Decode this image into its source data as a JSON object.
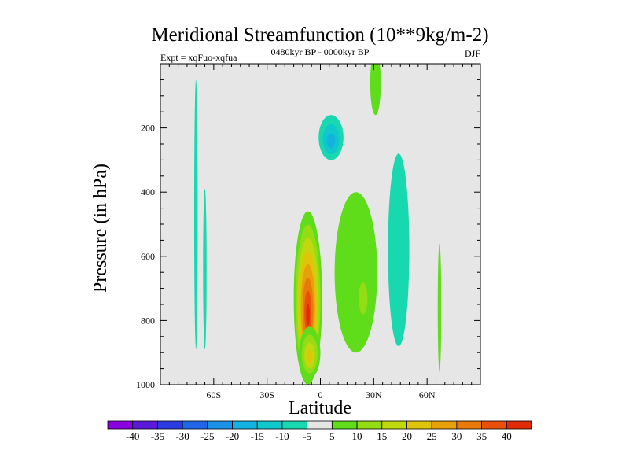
{
  "chart_data": {
    "type": "contour",
    "title": "Meridional Streamfunction (10**9kg/m-2)",
    "subtitle": "0480kyr BP - 0000kyr BP",
    "left_label": "Expt = xqFuo-xqfua",
    "right_label": "DJF",
    "xlabel": "Latitude",
    "ylabel": "Pressure (in hPa)",
    "xlim": [
      -90,
      90
    ],
    "ylim": [
      1000,
      0
    ],
    "x_ticks": [
      {
        "value": -60,
        "label": "60S"
      },
      {
        "value": -30,
        "label": "30S"
      },
      {
        "value": 0,
        "label": "0"
      },
      {
        "value": 30,
        "label": "30N"
      },
      {
        "value": 60,
        "label": "60N"
      }
    ],
    "y_ticks": [
      {
        "value": 200,
        "label": "200"
      },
      {
        "value": 400,
        "label": "400"
      },
      {
        "value": 600,
        "label": "600"
      },
      {
        "value": 800,
        "label": "800"
      },
      {
        "value": 1000,
        "label": "1000"
      }
    ],
    "levels": [
      -40,
      -35,
      -30,
      -25,
      -20,
      -15,
      -10,
      -5,
      5,
      10,
      15,
      20,
      25,
      30,
      35,
      40
    ],
    "level_labels": [
      "-40",
      "-35",
      "-30",
      "-25",
      "-20",
      "-15",
      "-10",
      "-5",
      "5",
      "10",
      "15",
      "20",
      "25",
      "30",
      "35",
      "40"
    ],
    "colors": [
      "#8a00e0",
      "#5b19d9",
      "#2b3be0",
      "#1f67e8",
      "#1a92e6",
      "#14b2e0",
      "#10c8cc",
      "#18d8b0",
      "#e6e6e6",
      "#5fdc1a",
      "#94dc14",
      "#c2d80e",
      "#e0c40a",
      "#e8a00a",
      "#e87a0a",
      "#e8500a",
      "#e02a08"
    ],
    "features": [
      {
        "name": "main-positive-cell",
        "center": [
          -7,
          730
        ],
        "rx": 8,
        "ry": 270,
        "peak": 40
      },
      {
        "name": "positive-cell-sh-low",
        "center": [
          -6,
          900
        ],
        "rx": 6,
        "ry": 80,
        "peak": 20
      },
      {
        "name": "negative-cell-upper",
        "center": [
          6,
          230
        ],
        "rx": 7,
        "ry": 70,
        "peak": -17
      },
      {
        "name": "positive-cell-tropics",
        "center": [
          20,
          650
        ],
        "rx": 12,
        "ry": 250,
        "peak": 9
      },
      {
        "name": "positive-cell-tropics-inner",
        "center": [
          24,
          720
        ],
        "rx": 5,
        "ry": 100,
        "peak": 12
      },
      {
        "name": "negative-cell-nh-midlat",
        "center": [
          44,
          580
        ],
        "rx": 6,
        "ry": 300,
        "peak": -8
      },
      {
        "name": "positive-column-30n",
        "center": [
          31,
          60
        ],
        "rx": 3,
        "ry": 100,
        "peak": 6
      },
      {
        "name": "negative-strip-70s",
        "center": [
          -70,
          470
        ],
        "rx": 1,
        "ry": 420,
        "peak": -6
      },
      {
        "name": "negative-strip-65s",
        "center": [
          -65,
          640
        ],
        "rx": 1,
        "ry": 250,
        "peak": -6
      },
      {
        "name": "positive-strip-68n",
        "center": [
          67,
          760
        ],
        "rx": 1,
        "ry": 200,
        "peak": 6
      }
    ]
  }
}
